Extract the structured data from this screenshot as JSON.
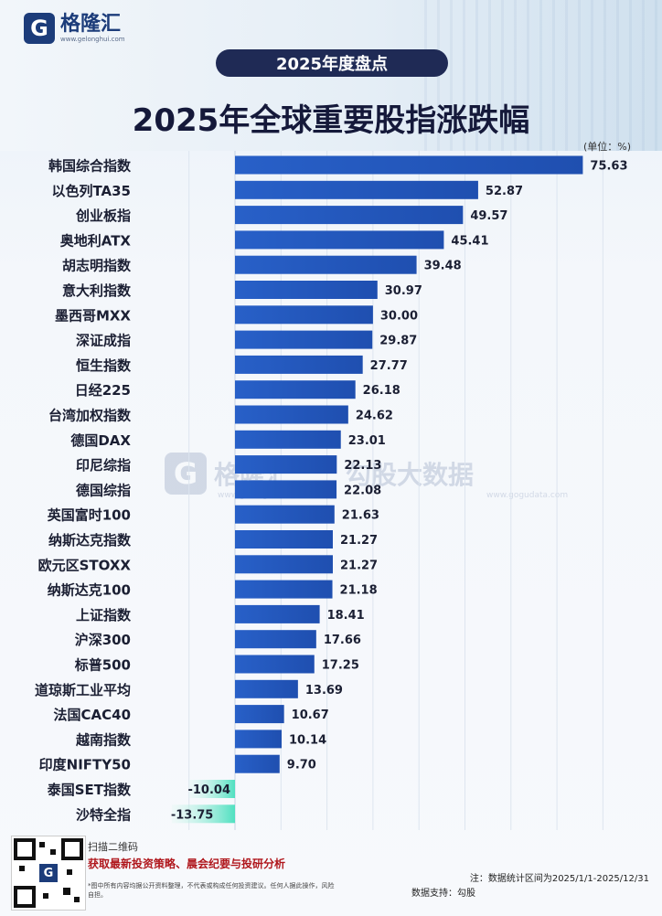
{
  "logo": {
    "mark": "G",
    "name": "格隆汇",
    "url": "www.gelonghui.com"
  },
  "badge": "2025年度盘点",
  "title": "2025年全球重要股指涨跌幅",
  "unit": "(单位：%)",
  "watermark": {
    "mark": "G",
    "name": "格隆汇",
    "url": "www.gelonghui.com",
    "name2": "勾股大数据",
    "url2": "www.gogudata.com"
  },
  "chart_data": {
    "type": "bar",
    "orientation": "horizontal",
    "title": "2025年全球重要股指涨跌幅",
    "unit": "%",
    "categories": [
      "韩国综合指数",
      "以色列TA35",
      "创业板指",
      "奥地利ATX",
      "胡志明指数",
      "意大利指数",
      "墨西哥MXX",
      "深证成指",
      "恒生指数",
      "日经225",
      "台湾加权指数",
      "德国DAX",
      "印尼综指",
      "德国综指",
      "英国富时100",
      "纳斯达克指数",
      "欧元区STOXX",
      "纳斯达克100",
      "上证指数",
      "沪深300",
      "标普500",
      "道琼斯工业平均",
      "法国CAC40",
      "越南指数",
      "印度NIFTY50",
      "泰国SET指数",
      "沙特全指"
    ],
    "values": [
      75.63,
      52.87,
      49.57,
      45.41,
      39.48,
      30.97,
      30.0,
      29.87,
      27.77,
      26.18,
      24.62,
      23.01,
      22.13,
      22.08,
      21.63,
      21.27,
      21.27,
      21.18,
      18.41,
      17.66,
      17.25,
      13.69,
      10.67,
      10.14,
      9.7,
      -10.04,
      -13.75
    ],
    "value_labels": [
      "75.63",
      "52.87",
      "49.57",
      "45.41",
      "39.48",
      "30.97",
      "30.00",
      "29.87",
      "27.77",
      "26.18",
      "24.62",
      "23.01",
      "22.13",
      "22.08",
      "21.63",
      "21.27",
      "21.27",
      "21.18",
      "18.41",
      "17.66",
      "17.25",
      "13.69",
      "10.67",
      "10.14",
      "9.70",
      "-10.04",
      "-13.75"
    ],
    "xlim": [
      -15,
      80
    ],
    "grid": true,
    "colors": {
      "positive": "#1f4fb0",
      "negative": "#4fe0c0"
    }
  },
  "footer": {
    "scan": "扫描二维码",
    "promo": "获取最新投资策略、晨会纪要与投研分析",
    "disclaimer": "*图中所有内容均据公开资料整理，不代表或构成任何投资建议。任何人据此操作，风险自担。",
    "note": "注：数据统计区间为2025/1/1-2025/12/31",
    "source": "数据支持：勾股"
  }
}
